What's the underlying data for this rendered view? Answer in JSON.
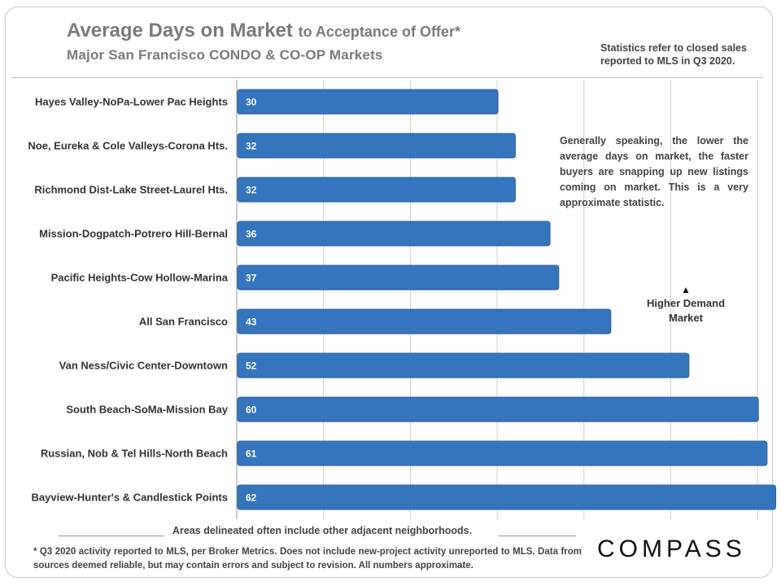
{
  "header": {
    "title_main": "Average Days on Market",
    "title_rest": "to Acceptance of Offer*",
    "subtitle": "Major San Francisco CONDO & CO-OP Markets",
    "stats_note": "Statistics refer to closed sales reported to MLS in Q3 2020."
  },
  "annotations": {
    "note": "Generally speaking, the lower the average days on market, the faster buyers are snapping up new listings coming on market. This is a very approximate statistic.",
    "demand_arrow": "▲",
    "demand_label": "Higher Demand Market"
  },
  "footer": {
    "areas_note": "Areas delineated often include other adjacent neighborhoods.",
    "footnote": "* Q3 2020 activity reported to MLS, per Broker Metrics. Does not include new-project activity unreported to MLS. Data from sources deemed reliable, but may contain errors and subject to revision. All numbers approximate.",
    "logo": "COMPASS"
  },
  "colors": {
    "bar": "#3575bd",
    "bar_edge": "#2a5f9c",
    "grid": "#d0d0d0",
    "label_text": "#333333",
    "value_text": "#ffffff"
  },
  "chart_data": {
    "type": "bar",
    "orientation": "horizontal",
    "title": "Average Days on Market to Acceptance of Offer*",
    "subtitle": "Major San Francisco CONDO & CO-OP Markets",
    "xlabel": "",
    "ylabel": "",
    "xlim": [
      0,
      62
    ],
    "grid": true,
    "categories": [
      "Hayes Valley-NoPa-Lower Pac Heights",
      "Noe, Eureka & Cole Valleys-Corona Hts.",
      "Richmond Dist-Lake Street-Laurel Hts.",
      "Mission-Dogpatch-Potrero Hill-Bernal",
      "Pacific Heights-Cow Hollow-Marina",
      "All San Francisco",
      "Van Ness/Civic Center-Downtown",
      "South Beach-SoMa-Mission Bay",
      "Russian, Nob & Tel Hills-North Beach",
      "Bayview-Hunter's & Candlestick Points"
    ],
    "values": [
      30,
      32,
      32,
      36,
      37,
      43,
      52,
      60,
      61,
      62
    ]
  }
}
